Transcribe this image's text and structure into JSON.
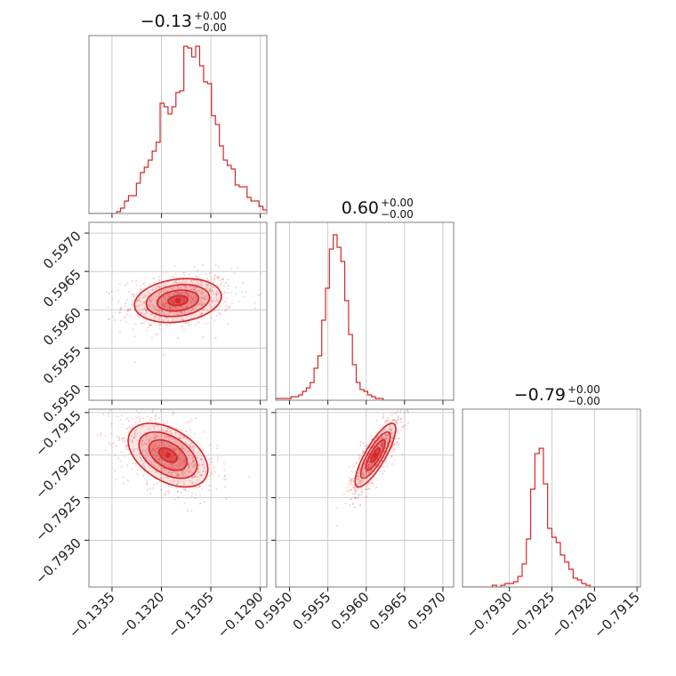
{
  "chart_data": {
    "type": "corner",
    "color": "#d62728",
    "parameters": [
      {
        "title": "−0.13",
        "title_sup": "+0.00",
        "title_sub": "−0.00",
        "range": [
          -0.1342,
          -0.1288
        ],
        "ticks": [
          -0.1335,
          -0.132,
          -0.1305,
          -0.129
        ],
        "tick_labels": [
          "−0.1335",
          "−0.1320",
          "−0.1305",
          "−0.1290"
        ],
        "hist_start": -0.1342,
        "hist_step": 0.00012,
        "hist": [
          0,
          0,
          0,
          0,
          0,
          0,
          0,
          0.01,
          0.03,
          0.07,
          0.1,
          0.1,
          0.17,
          0.23,
          0.26,
          0.3,
          0.35,
          0.4,
          0.62,
          0.6,
          0.56,
          0.6,
          0.68,
          0.69,
          0.94,
          0.93,
          0.88,
          0.94,
          0.83,
          0.74,
          0.73,
          0.55,
          0.5,
          0.38,
          0.3,
          0.27,
          0.25,
          0.16,
          0.15,
          0.15,
          0.09,
          0.07,
          0.07,
          0.04,
          0.02,
          0.01,
          0.01,
          0,
          0,
          0,
          0,
          0,
          0,
          0
        ]
      },
      {
        "title": "0.60",
        "title_sup": "+0.00",
        "title_sub": "−0.00",
        "range": [
          0.59482,
          0.59714
        ],
        "ticks": [
          0.595,
          0.5955,
          0.596,
          0.5965,
          0.597
        ],
        "tick_labels": [
          "0.5950",
          "0.5955",
          "0.5960",
          "0.5965",
          "0.5970"
        ],
        "hist_start": 0.59482,
        "hist_step": 5e-05,
        "hist": [
          0.01,
          0.01,
          0.01,
          0.01,
          0.02,
          0.02,
          0.03,
          0.05,
          0.07,
          0.1,
          0.18,
          0.25,
          0.45,
          0.63,
          0.85,
          0.93,
          0.86,
          0.78,
          0.56,
          0.37,
          0.2,
          0.1,
          0.06,
          0.05,
          0.03,
          0.02,
          0.01,
          0.01,
          0,
          0,
          0,
          0,
          0,
          0,
          0,
          0,
          0,
          0,
          0,
          0,
          0,
          0,
          0,
          0,
          0,
          0,
          0,
          0
        ]
      },
      {
        "title": "−0.79",
        "title_sup": "+0.00",
        "title_sub": "−0.00",
        "range": [
          -0.79355,
          -0.79146
        ],
        "ticks": [
          -0.793,
          -0.7925,
          -0.792,
          -0.7915
        ],
        "tick_labels": [
          "−0.7930",
          "−0.7925",
          "−0.7920",
          "−0.7915"
        ],
        "hist_start": -0.79355,
        "hist_step": 5e-05,
        "hist": [
          0,
          0,
          0,
          0,
          0,
          0,
          0,
          0.01,
          0,
          0.01,
          0.02,
          0.02,
          0.03,
          0.06,
          0.13,
          0.27,
          0.55,
          0.75,
          0.78,
          0.58,
          0.33,
          0.28,
          0.25,
          0.18,
          0.14,
          0.1,
          0.05,
          0.04,
          0.02,
          0.01,
          0,
          0,
          0,
          0,
          0,
          0,
          0,
          0,
          0,
          0,
          0,
          0,
          0
        ]
      }
    ],
    "pairs": [
      {
        "x": 0,
        "y": 1,
        "center": [
          -0.1315,
          0.59612
        ],
        "spread": [
          0.0006,
          0.00013
        ],
        "rho": 0.2
      },
      {
        "x": 0,
        "y": 2,
        "center": [
          -0.1318,
          -0.792
        ],
        "spread": [
          0.00055,
          0.00017
        ],
        "rho": -0.45
      },
      {
        "x": 1,
        "y": 2,
        "center": [
          0.59612,
          -0.792
        ],
        "spread": [
          0.00012,
          0.00017
        ],
        "rho": 0.82
      }
    ],
    "contour_levels": [
      0.8,
      0.55,
      0.3,
      0.12
    ],
    "grid": true
  }
}
